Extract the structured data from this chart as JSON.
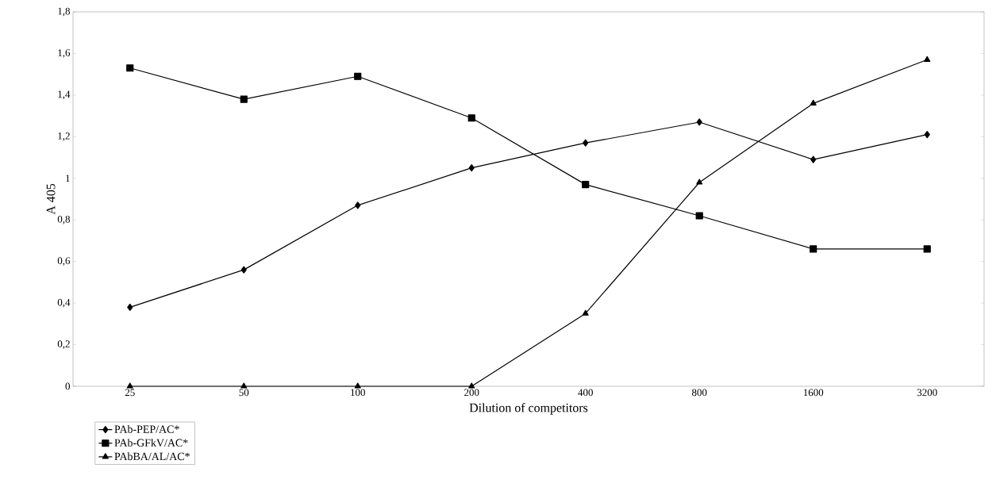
{
  "chart_data": {
    "type": "line",
    "xlabel": "Dilution of competitors",
    "ylabel": "A 405",
    "categories": [
      "25",
      "50",
      "100",
      "200",
      "400",
      "800",
      "1600",
      "3200"
    ],
    "ylim": [
      0,
      1.8
    ],
    "yticks": [
      {
        "value": 0,
        "label": "0"
      },
      {
        "value": 0.2,
        "label": "0,2"
      },
      {
        "value": 0.4,
        "label": "0,4"
      },
      {
        "value": 0.6,
        "label": "0,6"
      },
      {
        "value": 0.8,
        "label": "0,8"
      },
      {
        "value": 1,
        "label": "1"
      },
      {
        "value": 1.2,
        "label": "1,2"
      },
      {
        "value": 1.4,
        "label": "1,4"
      },
      {
        "value": 1.6,
        "label": "1,6"
      },
      {
        "value": 1.8,
        "label": "1,8"
      }
    ],
    "legend": "bottom left",
    "line_style": "solid",
    "series": [
      {
        "name": "PAb-PEP/AC*",
        "color": "#000000",
        "marker": "diamond",
        "values": [
          0.38,
          0.56,
          0.87,
          1.05,
          1.17,
          1.27,
          1.09,
          1.21
        ]
      },
      {
        "name": "PAb-GFkV/AC*",
        "color": "#000000",
        "marker": "square",
        "values": [
          1.53,
          1.38,
          1.49,
          1.29,
          0.97,
          0.82,
          0.66,
          0.66
        ]
      },
      {
        "name": "PAbBA/AL/AC*",
        "color": "#000000",
        "marker": "triangle",
        "values": [
          0,
          0,
          0,
          0,
          0.35,
          0.98,
          1.36,
          1.57
        ]
      }
    ]
  }
}
